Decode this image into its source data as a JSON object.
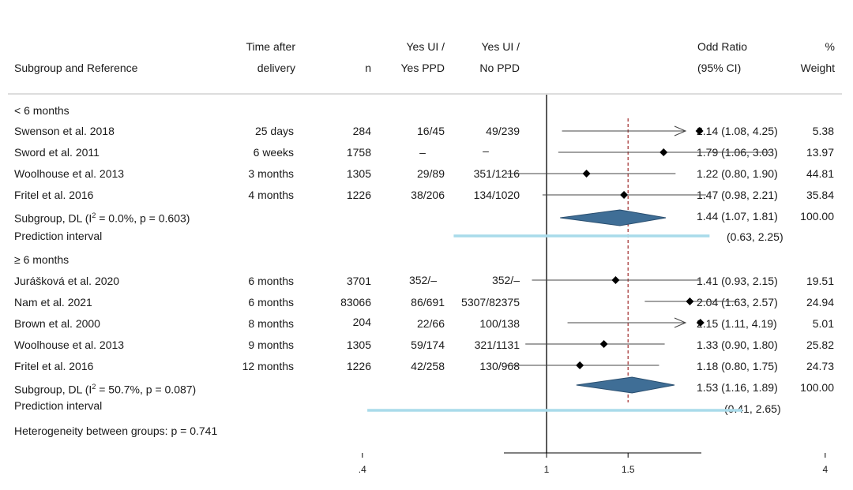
{
  "headers": {
    "subgroup": "Subgroup and Reference",
    "time_line1": "Time after",
    "time_line2": "delivery",
    "n": "n",
    "yes_ppd_line1": "Yes UI /",
    "yes_ppd_line2": "Yes PPD",
    "no_ppd_line1": "Yes UI /",
    "no_ppd_line2": "No PPD",
    "or_line1": "Odd Ratio",
    "or_line2": "(95% CI)",
    "weight_line1": "%",
    "weight_line2": "Weight"
  },
  "groups": [
    {
      "label": "< 6 months",
      "rows": [
        {
          "ref": "Swenson et al. 2018",
          "time": "25 days",
          "n": "284",
          "yes_ppd": "16/45",
          "no_ppd": "49/239",
          "or_text": "2.14 (1.08, 4.25)",
          "weight": "5.38"
        },
        {
          "ref": "Sword et al. 2011",
          "time": "6 weeks",
          "n": "1758",
          "yes_ppd": "–",
          "no_ppd": "–",
          "or_text": "1.79 (1.06, 3.03)",
          "weight": "13.97"
        },
        {
          "ref": "Woolhouse et al. 2013",
          "time": "3 months",
          "n": "1305",
          "yes_ppd": "29/89",
          "no_ppd": "351/1216",
          "or_text": "1.22 (0.80, 1.90)",
          "weight": "44.81"
        },
        {
          "ref": "Fritel et al. 2016",
          "time": "4 months",
          "n": "1226",
          "yes_ppd": "38/206",
          "no_ppd": "134/1020",
          "or_text": "1.47 (0.98, 2.21)",
          "weight": "35.84"
        }
      ],
      "subgroup_label_prefix": "Subgroup, DL (I",
      "subgroup_label_sup": "2",
      "subgroup_label_suffix": " = 0.0%, p = 0.603)",
      "subgroup_or_text": "1.44 (1.07, 1.81)",
      "subgroup_weight": "100.00",
      "prediction_label": "Prediction interval",
      "prediction_text": "(0.63, 2.25)"
    },
    {
      "label": "≥ 6 months",
      "rows": [
        {
          "ref": "Jurášková et al. 2020",
          "time": "6 months",
          "n": "3701",
          "yes_ppd": "352/–",
          "no_ppd": "352/–",
          "or_text": "1.41 (0.93, 2.15)",
          "weight": "19.51"
        },
        {
          "ref": "Nam et al. 2021",
          "time": "6 months",
          "n": "83066",
          "yes_ppd": "86/691",
          "no_ppd": "5307/82375",
          "or_text": "2.04 (1.63, 2.57)",
          "weight": "24.94"
        },
        {
          "ref": "Brown et al. 2000",
          "time": "8 months",
          "n": "204",
          "yes_ppd": "22/66",
          "no_ppd": "100/138",
          "or_text": "2.15 (1.11, 4.19)",
          "weight": "5.01"
        },
        {
          "ref": "Woolhouse et al. 2013",
          "time": "9 months",
          "n": "1305",
          "yes_ppd": "59/174",
          "no_ppd": "321/1131",
          "or_text": "1.33 (0.90, 1.80)",
          "weight": "25.82"
        },
        {
          "ref": "Fritel et al. 2016",
          "time": "12 months",
          "n": "1226",
          "yes_ppd": "42/258",
          "no_ppd": "130/968",
          "or_text": "1.18 (0.80, 1.75)",
          "weight": "24.73"
        }
      ],
      "subgroup_label_prefix": "Subgroup, DL (I",
      "subgroup_label_sup": "2",
      "subgroup_label_suffix": " = 50.7%, p = 0.087)",
      "subgroup_or_text": "1.53 (1.16, 1.89)",
      "subgroup_weight": "100.00",
      "prediction_label": "Prediction interval",
      "prediction_text": "(0.41, 2.65)"
    }
  ],
  "heterogeneity": "Heterogeneity between groups: p = 0.741",
  "colors": {
    "marker": "#000000",
    "ci_line": "#444444",
    "diamond_fill": "#3f6e96",
    "diamond_stroke": "#2a4f70",
    "prediction": "#a9dbea",
    "reference_line": "#a12a2a",
    "separator": "#bbbbbb"
  },
  "chart_data": {
    "type": "forest",
    "x_scale": "log",
    "xlim": [
      0.4,
      4
    ],
    "ticks": [
      0.4,
      1,
      1.5,
      4
    ],
    "tick_labels": [
      ".4",
      "1",
      "1.5",
      "4"
    ],
    "null_line": 1,
    "overall_line": 1.5,
    "series": [
      {
        "points": [
          {
            "or": 2.14,
            "lo": 1.08,
            "hi": 4.25,
            "arrow_hi": true
          },
          {
            "or": 1.79,
            "lo": 1.06,
            "hi": 3.03
          },
          {
            "or": 1.22,
            "lo": 0.8,
            "hi": 1.9
          },
          {
            "or": 1.47,
            "lo": 0.98,
            "hi": 2.21
          }
        ],
        "summary": {
          "or": 1.44,
          "lo": 1.07,
          "hi": 1.81
        },
        "prediction": [
          0.63,
          2.25
        ]
      },
      {
        "points": [
          {
            "or": 1.41,
            "lo": 0.93,
            "hi": 2.15
          },
          {
            "or": 2.04,
            "lo": 1.63,
            "hi": 2.57
          },
          {
            "or": 2.15,
            "lo": 1.11,
            "hi": 4.19,
            "arrow_hi": true
          },
          {
            "or": 1.33,
            "lo": 0.9,
            "hi": 1.8
          },
          {
            "or": 1.18,
            "lo": 0.8,
            "hi": 1.75
          }
        ],
        "summary": {
          "or": 1.53,
          "lo": 1.16,
          "hi": 1.89
        },
        "prediction": [
          0.41,
          2.65
        ]
      }
    ]
  }
}
